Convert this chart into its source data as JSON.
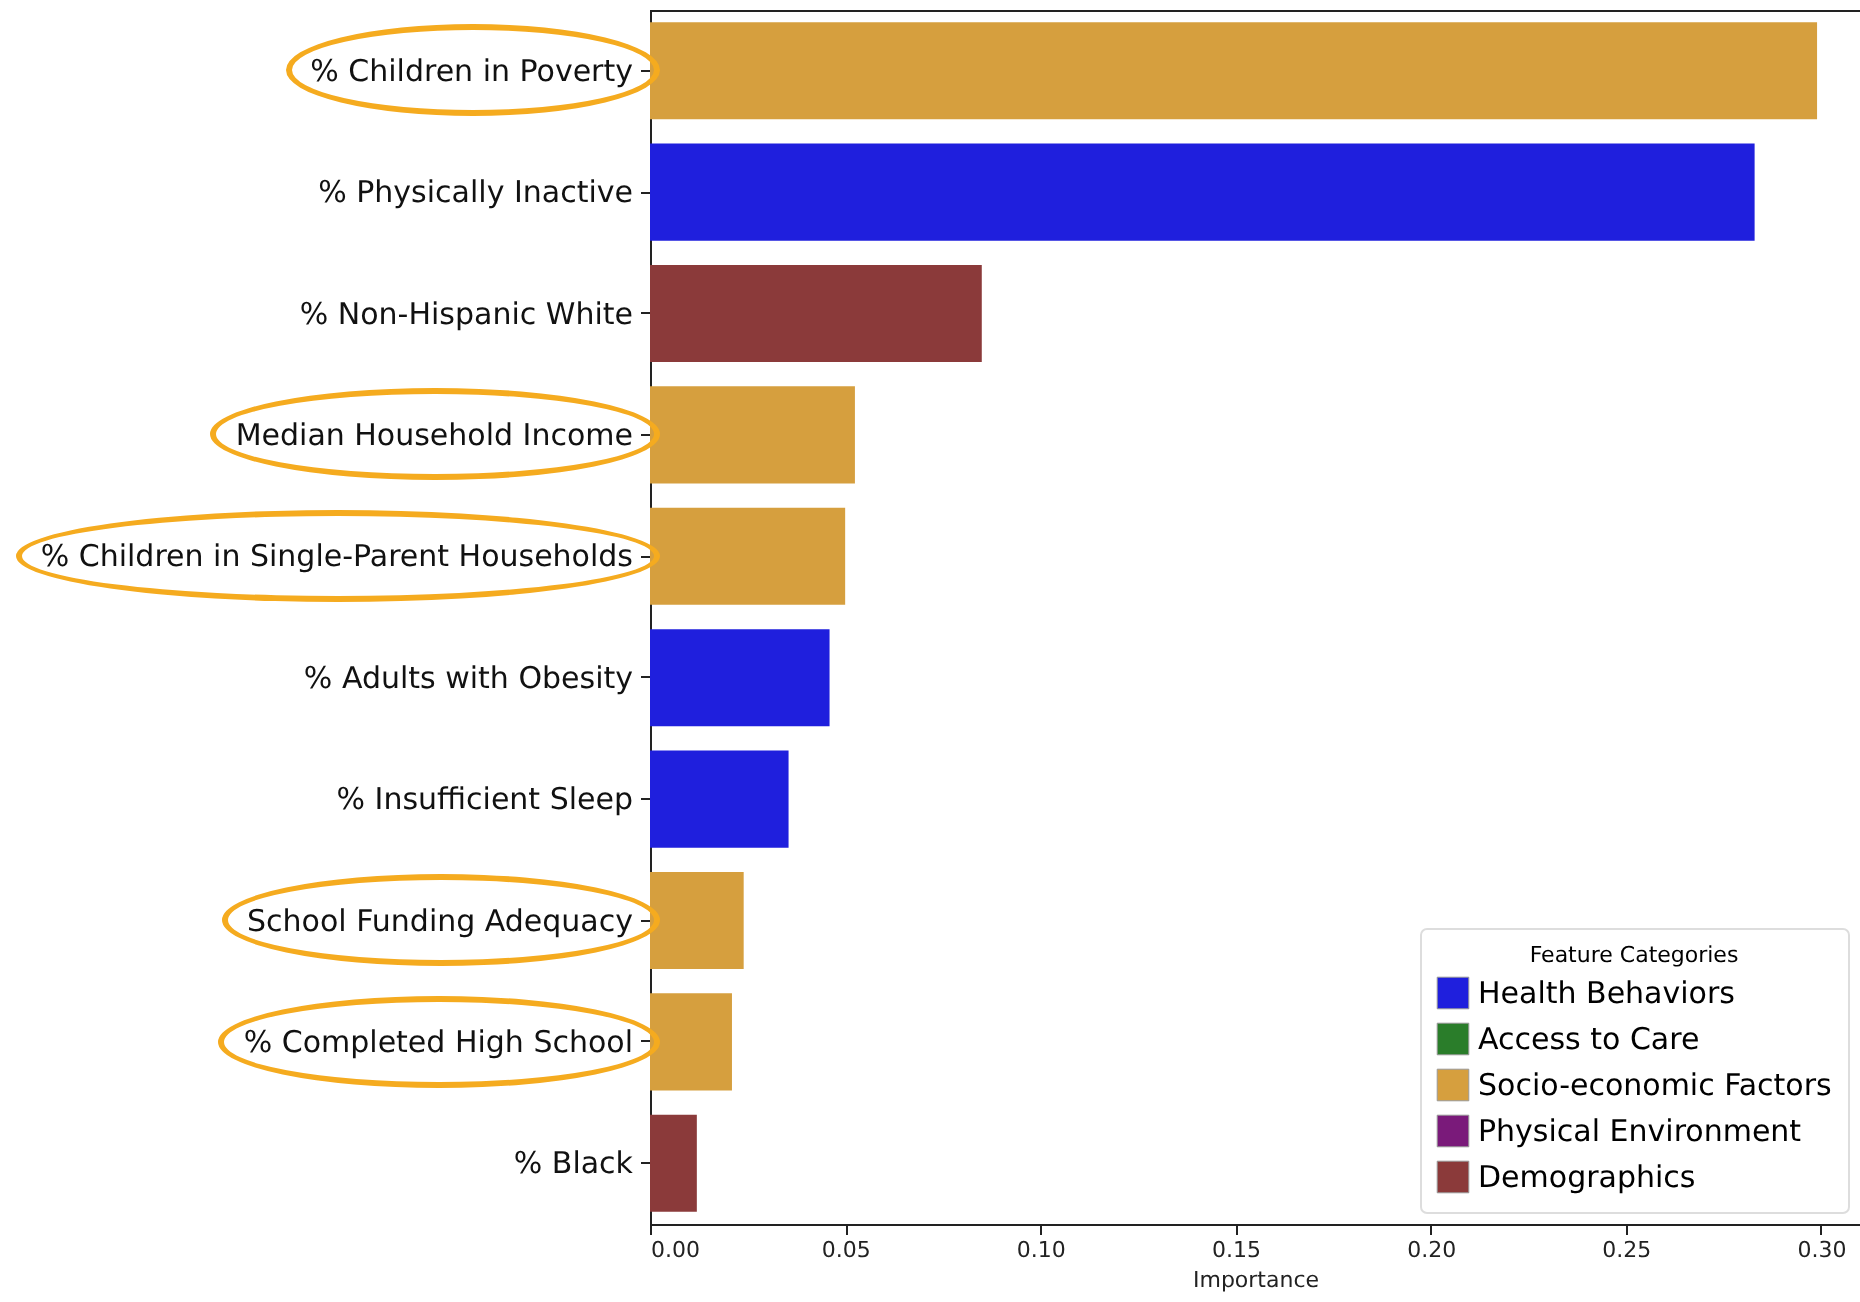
{
  "chart_data": {
    "type": "bar",
    "orientation": "horizontal",
    "xlabel": "Importance",
    "legend_title": "Feature Categories",
    "legend": "bottom right",
    "categories": [
      "% Children in Poverty",
      "% Physically Inactive",
      "% Non-Hispanic White",
      "Median Household Income",
      "% Children in Single-Parent Households",
      "% Adults with Obesity",
      "% Insufficient Sleep",
      "School Funding Adequacy",
      "% Completed High School",
      "% Black"
    ],
    "series": [
      {
        "name": "Health Behaviors",
        "color": "#1f1fdd",
        "values": [
          null,
          0.283,
          null,
          null,
          null,
          0.046,
          0.0355,
          null,
          null,
          null
        ]
      },
      {
        "name": "Access to Care",
        "color": "#2a7d2a",
        "values": [
          null,
          null,
          null,
          null,
          null,
          null,
          null,
          null,
          null,
          null
        ]
      },
      {
        "name": "Socio-economic Factors",
        "color": "#d69f3e",
        "values": [
          0.299,
          null,
          null,
          0.0525,
          0.05,
          null,
          null,
          0.024,
          0.021,
          null
        ]
      },
      {
        "name": "Physical Environment",
        "color": "#7a1a7a",
        "values": [
          null,
          null,
          null,
          null,
          null,
          null,
          null,
          null,
          null,
          null
        ]
      },
      {
        "name": "Demographics",
        "color": "#8b3a3a",
        "values": [
          null,
          null,
          0.085,
          null,
          null,
          null,
          null,
          null,
          null,
          0.012
        ]
      }
    ],
    "xlim": [
      0,
      0.31
    ],
    "xticks": [
      {
        "value": 0,
        "label": "0.00"
      },
      {
        "value": 0.05,
        "label": "0.05"
      },
      {
        "value": 0.1,
        "label": "0.10"
      },
      {
        "value": 0.15,
        "label": "0.15"
      },
      {
        "value": 0.2,
        "label": "0.20"
      },
      {
        "value": 0.25,
        "label": "0.25"
      },
      {
        "value": 0.3,
        "label": "0.30"
      }
    ]
  }
}
